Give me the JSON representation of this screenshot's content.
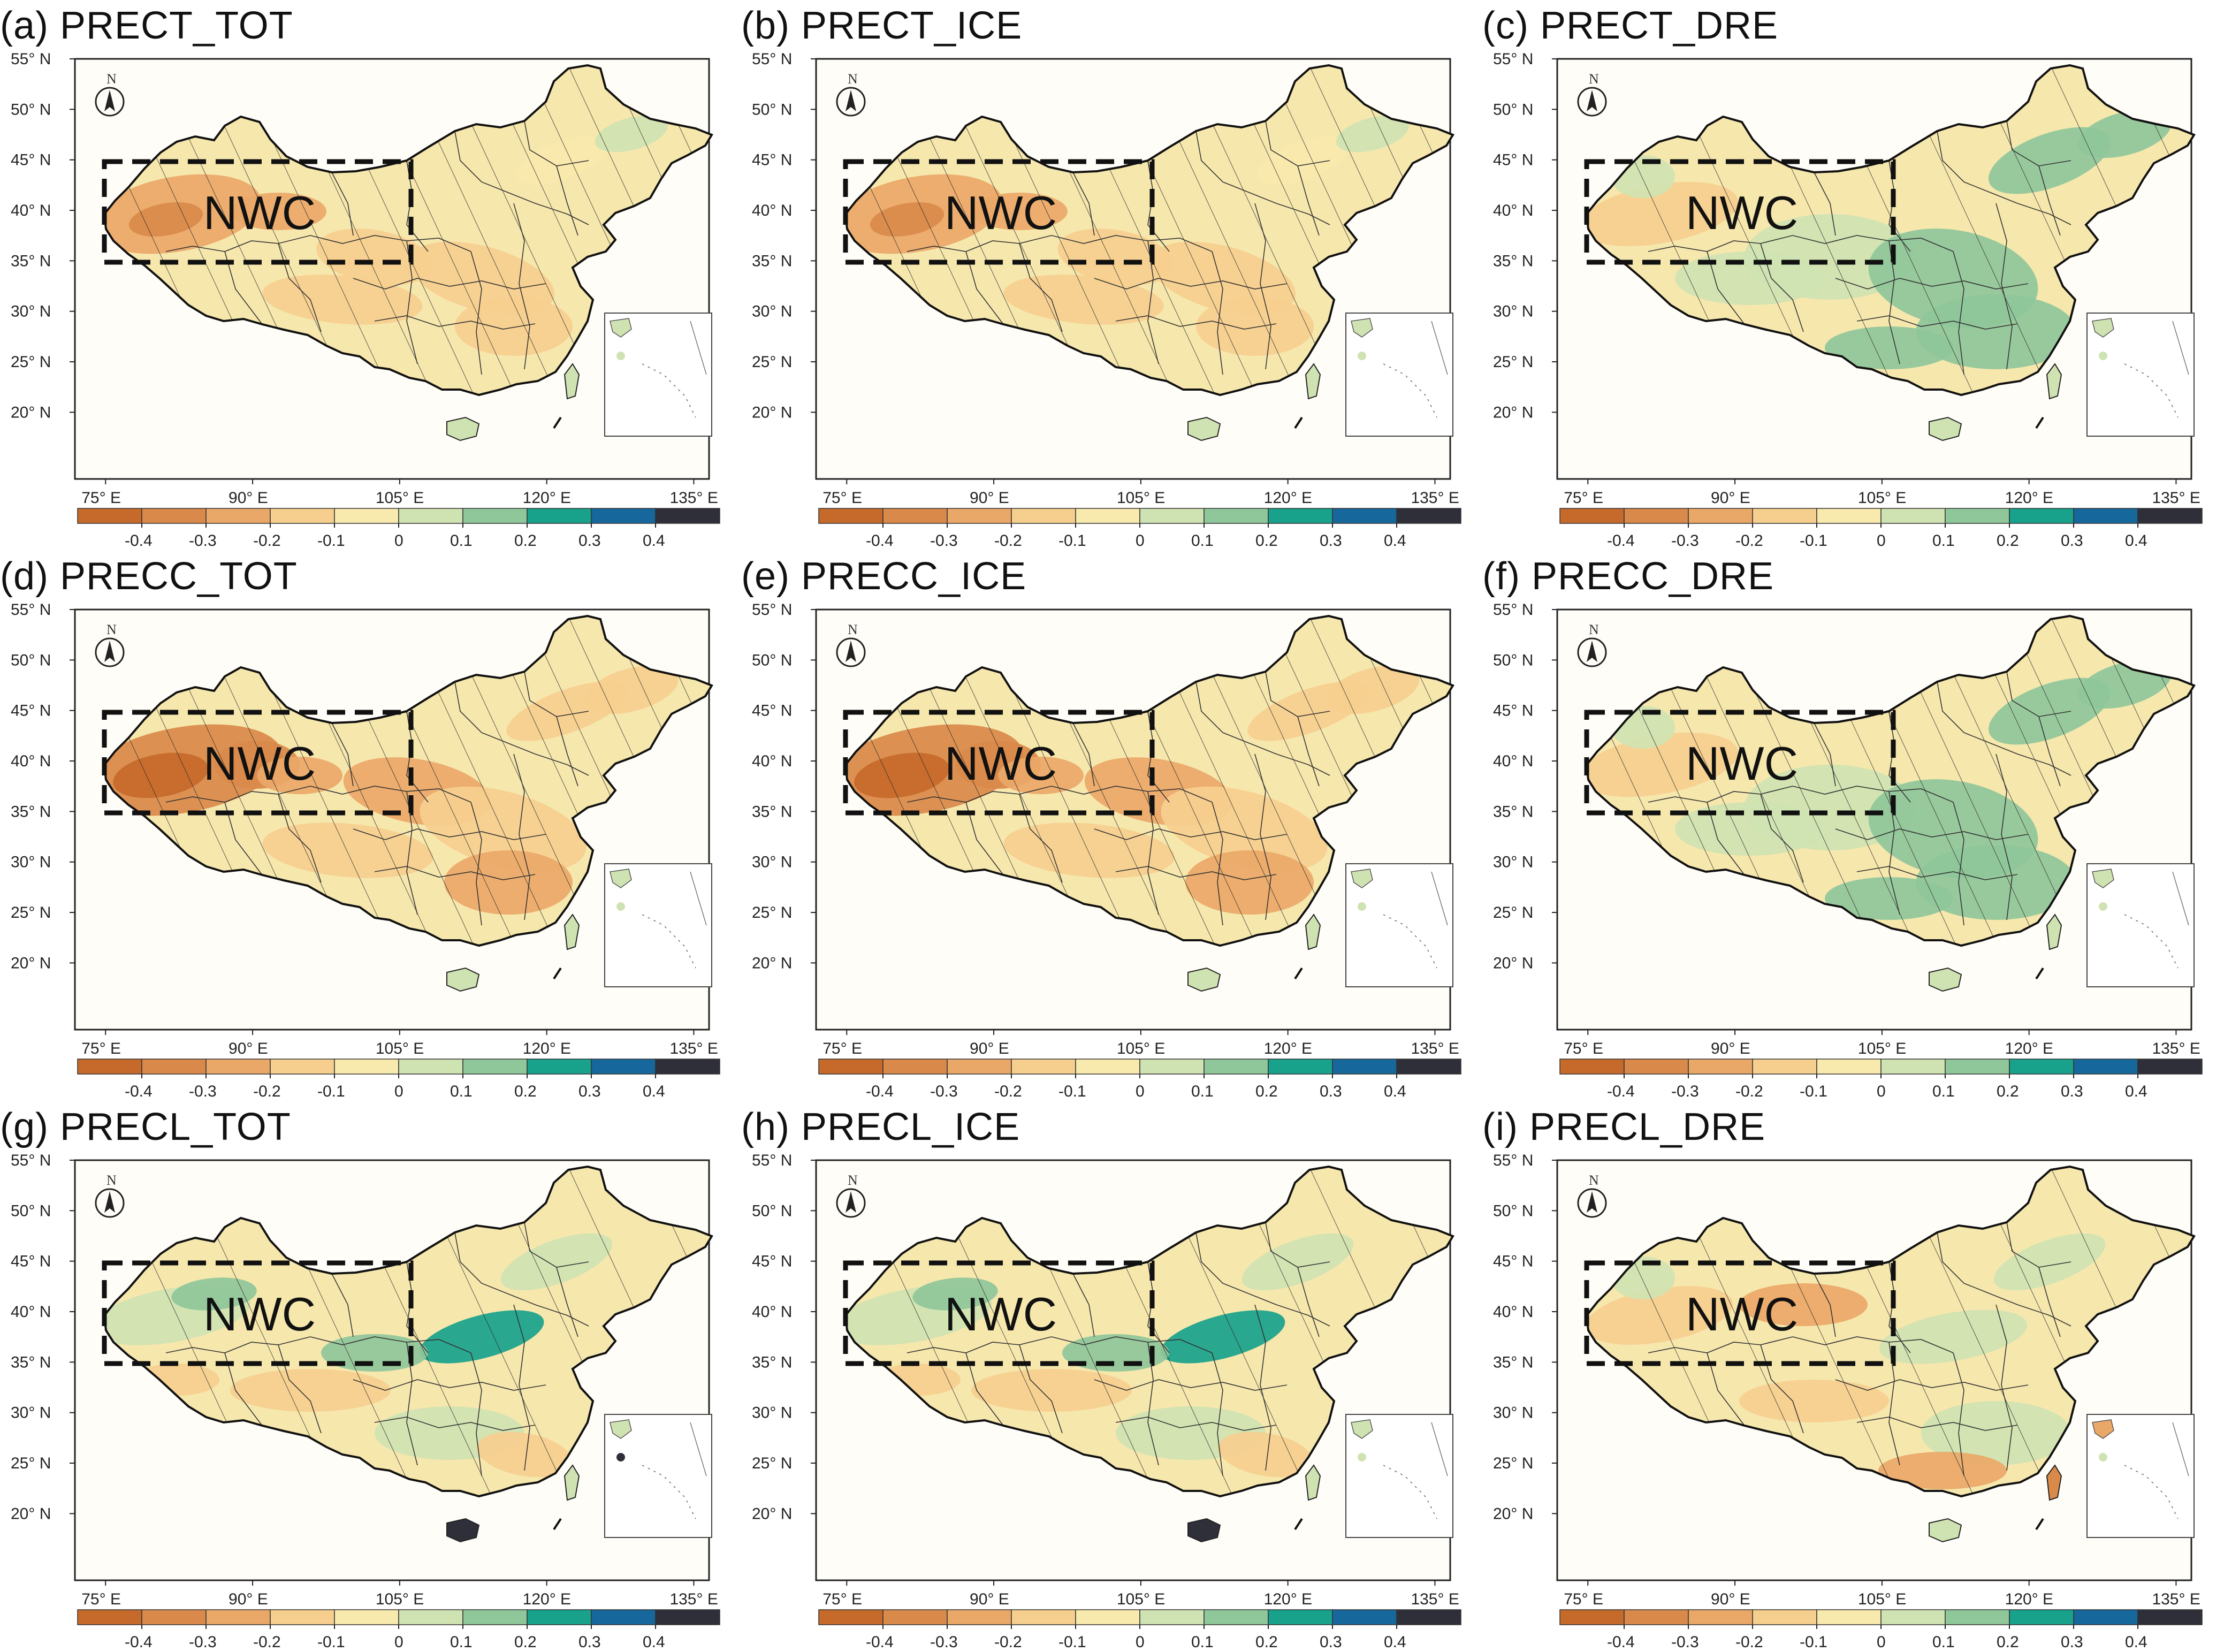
{
  "figure": {
    "region_label": "NWC",
    "north_label": "N",
    "colors": {
      "land_base": "#f6e7ad",
      "border": "#111111",
      "box": "#111111",
      "background": "#fffdf8"
    },
    "lat_ticks": [
      "55° N",
      "50° N",
      "45° N",
      "40° N",
      "35° N",
      "30° N",
      "25° N",
      "20° N"
    ],
    "lon_ticks": [
      "75° E",
      "90° E",
      "105° E",
      "120° E",
      "135° E"
    ],
    "colorbar": {
      "labels": [
        "-0.4",
        "-0.3",
        "-0.2",
        "-0.1",
        "0",
        "0.1",
        "0.2",
        "0.3",
        "0.4"
      ],
      "colors": [
        "#c56a2b",
        "#d98a4a",
        "#eaa868",
        "#f6cf8f",
        "#f8e9ad",
        "#cfe3b2",
        "#8fc79a",
        "#18a28c",
        "#16679b",
        "#2f2f3a"
      ]
    }
  },
  "panels": [
    {
      "title": "(a) PRECT_TOT",
      "theme": "dry",
      "hatch": "dense",
      "icon": "compass-icon"
    },
    {
      "title": "(b) PRECT_ICE",
      "theme": "dry",
      "hatch": "dense",
      "icon": "compass-icon"
    },
    {
      "title": "(c) PRECT_DRE",
      "theme": "green",
      "hatch": "light",
      "icon": "compass-icon"
    },
    {
      "title": "(d) PRECC_TOT",
      "theme": "very-dry",
      "hatch": "dense",
      "icon": "compass-icon"
    },
    {
      "title": "(e) PRECC_ICE",
      "theme": "very-dry",
      "hatch": "dense",
      "icon": "compass-icon"
    },
    {
      "title": "(f) PRECC_DRE",
      "theme": "green",
      "hatch": "dense",
      "icon": "compass-icon"
    },
    {
      "title": "(g) PRECL_TOT",
      "theme": "mixed-wet",
      "hatch": "light",
      "icon": "compass-icon"
    },
    {
      "title": "(h) PRECL_ICE",
      "theme": "mixed-wet",
      "hatch": "light",
      "icon": "compass-icon"
    },
    {
      "title": "(i) PRECL_DRE",
      "theme": "mixed-dry",
      "hatch": "light",
      "icon": "compass-icon"
    }
  ]
}
